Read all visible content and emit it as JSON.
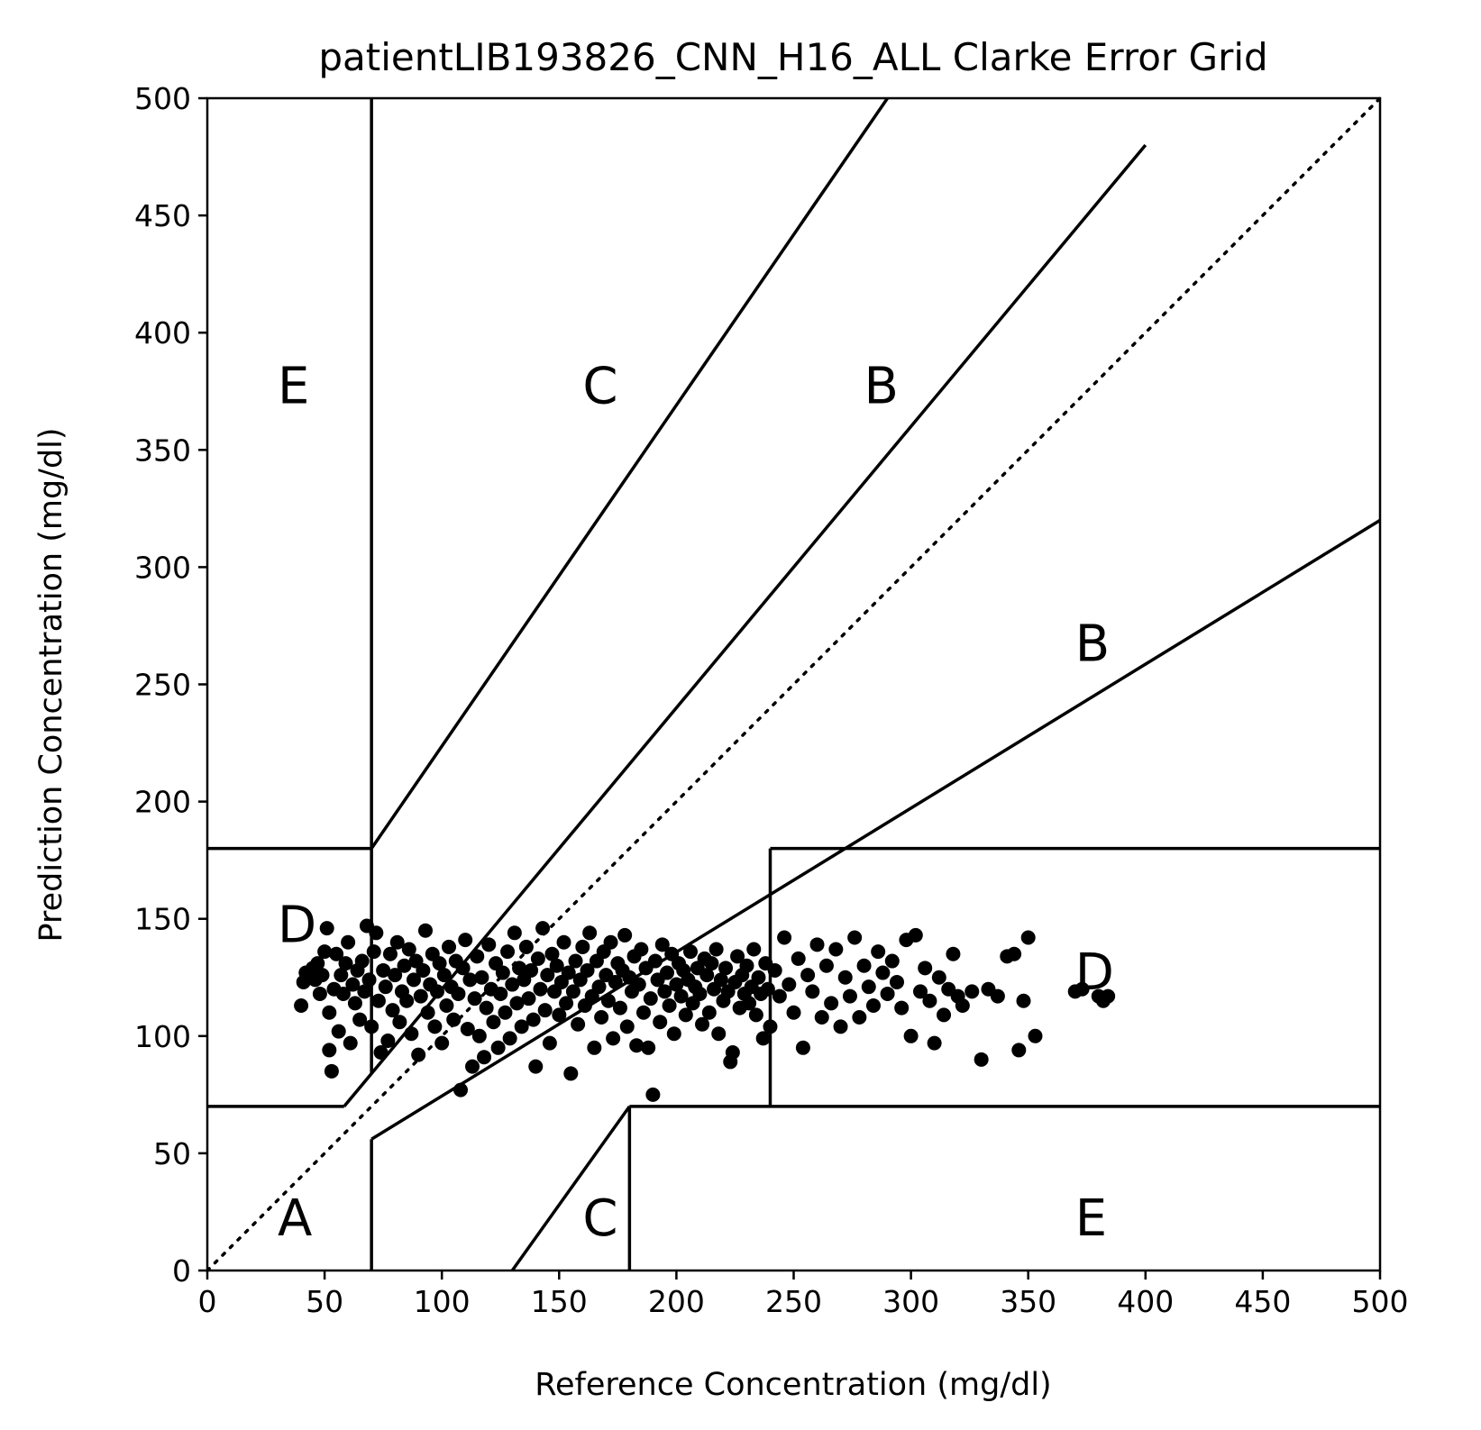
{
  "chart_data": {
    "type": "scatter",
    "title": "patientLIB193826_CNN_H16_ALL Clarke Error Grid",
    "xlabel": "Reference Concentration (mg/dl)",
    "ylabel": "Prediction Concentration (mg/dl)",
    "xlim": [
      0,
      500
    ],
    "ylim": [
      0,
      500
    ],
    "x_ticks": [
      "0",
      "50",
      "100",
      "150",
      "200",
      "250",
      "300",
      "350",
      "400",
      "450",
      "500"
    ],
    "y_ticks": [
      "0",
      "50",
      "100",
      "150",
      "200",
      "250",
      "300",
      "350",
      "400",
      "450",
      "500"
    ],
    "grid": false,
    "legend": "none",
    "point_color": "#000000",
    "zone_lines": [
      {
        "name": "diagonal",
        "style": "dotted",
        "x": [
          0,
          500
        ],
        "y": [
          0,
          500
        ]
      },
      {
        "name": "A-top",
        "x": [
          0,
          58.33
        ],
        "y": [
          70,
          70
        ]
      },
      {
        "name": "A-upper",
        "x": [
          58.33,
          400
        ],
        "y": [
          70,
          480
        ]
      },
      {
        "name": "E-left-vertical",
        "x": [
          70,
          70
        ],
        "y": [
          180,
          500
        ]
      },
      {
        "name": "E-left-bottom",
        "x": [
          0,
          70
        ],
        "y": [
          180,
          180
        ]
      },
      {
        "name": "C-upper",
        "x": [
          70,
          290
        ],
        "y": [
          180,
          500
        ]
      },
      {
        "name": "D-left-vertical",
        "x": [
          70,
          70
        ],
        "y": [
          84,
          180
        ]
      },
      {
        "name": "A-lower-vertical",
        "x": [
          70,
          70
        ],
        "y": [
          0,
          56
        ]
      },
      {
        "name": "A-lower",
        "x": [
          70,
          500
        ],
        "y": [
          56,
          320
        ]
      },
      {
        "name": "C-lower",
        "x": [
          130,
          180
        ],
        "y": [
          0,
          70
        ]
      },
      {
        "name": "E-right-vertical",
        "x": [
          180,
          180
        ],
        "y": [
          0,
          70
        ]
      },
      {
        "name": "E-right-top",
        "x": [
          180,
          500
        ],
        "y": [
          70,
          70
        ]
      },
      {
        "name": "D-right-vertical",
        "x": [
          240,
          240
        ],
        "y": [
          70,
          180
        ]
      },
      {
        "name": "D-right-top",
        "x": [
          240,
          500
        ],
        "y": [
          180,
          180
        ]
      }
    ],
    "zone_labels": [
      {
        "text": "A",
        "x": 30,
        "y": 15
      },
      {
        "text": "B",
        "x": 370,
        "y": 260
      },
      {
        "text": "B",
        "x": 280,
        "y": 370
      },
      {
        "text": "C",
        "x": 160,
        "y": 370
      },
      {
        "text": "C",
        "x": 160,
        "y": 15
      },
      {
        "text": "D",
        "x": 30,
        "y": 140
      },
      {
        "text": "D",
        "x": 370,
        "y": 120
      },
      {
        "text": "E",
        "x": 30,
        "y": 370
      },
      {
        "text": "E",
        "x": 370,
        "y": 15
      }
    ],
    "series": [
      {
        "values": [
          [
            40,
            113
          ],
          [
            41,
            123
          ],
          [
            42,
            127
          ],
          [
            44,
            125
          ],
          [
            45,
            129
          ],
          [
            46,
            124
          ],
          [
            47,
            131
          ],
          [
            48,
            118
          ],
          [
            49,
            126
          ],
          [
            50,
            136
          ],
          [
            51,
            146
          ],
          [
            52,
            94
          ],
          [
            52,
            110
          ],
          [
            53,
            85
          ],
          [
            54,
            120
          ],
          [
            55,
            135
          ],
          [
            56,
            102
          ],
          [
            57,
            126
          ],
          [
            58,
            118
          ],
          [
            59,
            131
          ],
          [
            60,
            140
          ],
          [
            61,
            97
          ],
          [
            62,
            122
          ],
          [
            63,
            114
          ],
          [
            64,
            128
          ],
          [
            65,
            107
          ],
          [
            66,
            132
          ],
          [
            67,
            119
          ],
          [
            68,
            147
          ],
          [
            69,
            124
          ],
          [
            70,
            104
          ],
          [
            71,
            136
          ],
          [
            72,
            144
          ],
          [
            73,
            115
          ],
          [
            74,
            93
          ],
          [
            75,
            128
          ],
          [
            76,
            121
          ],
          [
            77,
            98
          ],
          [
            78,
            135
          ],
          [
            79,
            111
          ],
          [
            80,
            126
          ],
          [
            81,
            140
          ],
          [
            82,
            106
          ],
          [
            83,
            119
          ],
          [
            84,
            130
          ],
          [
            85,
            115
          ],
          [
            86,
            137
          ],
          [
            87,
            101
          ],
          [
            88,
            124
          ],
          [
            89,
            132
          ],
          [
            90,
            92
          ],
          [
            91,
            117
          ],
          [
            92,
            128
          ],
          [
            93,
            145
          ],
          [
            94,
            110
          ],
          [
            95,
            122
          ],
          [
            96,
            135
          ],
          [
            97,
            104
          ],
          [
            98,
            119
          ],
          [
            99,
            131
          ],
          [
            100,
            97
          ],
          [
            101,
            126
          ],
          [
            102,
            113
          ],
          [
            103,
            138
          ],
          [
            104,
            121
          ],
          [
            105,
            107
          ],
          [
            106,
            132
          ],
          [
            107,
            118
          ],
          [
            108,
            77
          ],
          [
            109,
            129
          ],
          [
            110,
            141
          ],
          [
            111,
            103
          ],
          [
            112,
            124
          ],
          [
            113,
            87
          ],
          [
            114,
            116
          ],
          [
            115,
            134
          ],
          [
            116,
            100
          ],
          [
            117,
            125
          ],
          [
            118,
            91
          ],
          [
            119,
            112
          ],
          [
            120,
            139
          ],
          [
            121,
            120
          ],
          [
            122,
            106
          ],
          [
            123,
            131
          ],
          [
            124,
            95
          ],
          [
            125,
            118
          ],
          [
            126,
            127
          ],
          [
            127,
            110
          ],
          [
            128,
            136
          ],
          [
            129,
            99
          ],
          [
            130,
            122
          ],
          [
            131,
            144
          ],
          [
            132,
            114
          ],
          [
            133,
            129
          ],
          [
            134,
            104
          ],
          [
            135,
            124
          ],
          [
            136,
            138
          ],
          [
            137,
            116
          ],
          [
            138,
            128
          ],
          [
            139,
            107
          ],
          [
            140,
            87
          ],
          [
            141,
            133
          ],
          [
            142,
            120
          ],
          [
            143,
            146
          ],
          [
            144,
            111
          ],
          [
            145,
            126
          ],
          [
            146,
            97
          ],
          [
            147,
            135
          ],
          [
            148,
            119
          ],
          [
            149,
            130
          ],
          [
            150,
            109
          ],
          [
            151,
            123
          ],
          [
            152,
            140
          ],
          [
            153,
            114
          ],
          [
            154,
            127
          ],
          [
            155,
            84
          ],
          [
            156,
            119
          ],
          [
            157,
            132
          ],
          [
            158,
            105
          ],
          [
            159,
            124
          ],
          [
            160,
            138
          ],
          [
            161,
            113
          ],
          [
            162,
            128
          ],
          [
            163,
            144
          ],
          [
            164,
            117
          ],
          [
            165,
            95
          ],
          [
            166,
            132
          ],
          [
            167,
            121
          ],
          [
            168,
            108
          ],
          [
            169,
            136
          ],
          [
            170,
            126
          ],
          [
            171,
            115
          ],
          [
            172,
            140
          ],
          [
            173,
            99
          ],
          [
            174,
            123
          ],
          [
            175,
            131
          ],
          [
            176,
            112
          ],
          [
            177,
            128
          ],
          [
            178,
            143
          ],
          [
            179,
            104
          ],
          [
            180,
            125
          ],
          [
            181,
            119
          ],
          [
            182,
            134
          ],
          [
            183,
            96
          ],
          [
            184,
            122
          ],
          [
            185,
            137
          ],
          [
            186,
            110
          ],
          [
            187,
            129
          ],
          [
            188,
            95
          ],
          [
            189,
            116
          ],
          [
            190,
            75
          ],
          [
            191,
            132
          ],
          [
            192,
            124
          ],
          [
            193,
            106
          ],
          [
            194,
            139
          ],
          [
            195,
            119
          ],
          [
            196,
            127
          ],
          [
            197,
            113
          ],
          [
            198,
            135
          ],
          [
            199,
            101
          ],
          [
            200,
            122
          ],
          [
            201,
            131
          ],
          [
            202,
            117
          ],
          [
            203,
            128
          ],
          [
            204,
            109
          ],
          [
            205,
            124
          ],
          [
            206,
            136
          ],
          [
            207,
            114
          ],
          [
            208,
            121
          ],
          [
            209,
            129
          ],
          [
            210,
            118
          ],
          [
            211,
            105
          ],
          [
            212,
            133
          ],
          [
            213,
            126
          ],
          [
            214,
            110
          ],
          [
            215,
            131
          ],
          [
            216,
            120
          ],
          [
            217,
            137
          ],
          [
            218,
            101
          ],
          [
            219,
            124
          ],
          [
            220,
            115
          ],
          [
            221,
            129
          ],
          [
            222,
            119
          ],
          [
            223,
            89
          ],
          [
            224,
            93
          ],
          [
            225,
            123
          ],
          [
            226,
            134
          ],
          [
            227,
            112
          ],
          [
            228,
            126
          ],
          [
            229,
            118
          ],
          [
            230,
            130
          ],
          [
            231,
            114
          ],
          [
            232,
            121
          ],
          [
            233,
            137
          ],
          [
            234,
            109
          ],
          [
            235,
            125
          ],
          [
            236,
            118
          ],
          [
            237,
            99
          ],
          [
            238,
            131
          ],
          [
            239,
            120
          ],
          [
            240,
            104
          ],
          [
            242,
            128
          ],
          [
            244,
            117
          ],
          [
            246,
            142
          ],
          [
            248,
            122
          ],
          [
            250,
            110
          ],
          [
            252,
            133
          ],
          [
            254,
            95
          ],
          [
            256,
            126
          ],
          [
            258,
            119
          ],
          [
            260,
            139
          ],
          [
            262,
            108
          ],
          [
            264,
            130
          ],
          [
            266,
            114
          ],
          [
            268,
            137
          ],
          [
            270,
            104
          ],
          [
            272,
            125
          ],
          [
            274,
            117
          ],
          [
            276,
            142
          ],
          [
            278,
            108
          ],
          [
            280,
            130
          ],
          [
            282,
            121
          ],
          [
            284,
            113
          ],
          [
            286,
            136
          ],
          [
            288,
            127
          ],
          [
            290,
            118
          ],
          [
            292,
            132
          ],
          [
            294,
            123
          ],
          [
            296,
            112
          ],
          [
            298,
            141
          ],
          [
            300,
            100
          ],
          [
            302,
            143
          ],
          [
            304,
            119
          ],
          [
            306,
            129
          ],
          [
            308,
            115
          ],
          [
            310,
            97
          ],
          [
            312,
            125
          ],
          [
            314,
            109
          ],
          [
            316,
            120
          ],
          [
            318,
            135
          ],
          [
            320,
            117
          ],
          [
            322,
            113
          ],
          [
            326,
            119
          ],
          [
            330,
            90
          ],
          [
            333,
            120
          ],
          [
            337,
            117
          ],
          [
            341,
            134
          ],
          [
            344,
            135
          ],
          [
            346,
            94
          ],
          [
            348,
            115
          ],
          [
            350,
            142
          ],
          [
            353,
            100
          ],
          [
            370,
            119
          ],
          [
            373,
            120
          ],
          [
            380,
            117
          ],
          [
            382,
            115
          ],
          [
            384,
            117
          ]
        ]
      }
    ]
  }
}
